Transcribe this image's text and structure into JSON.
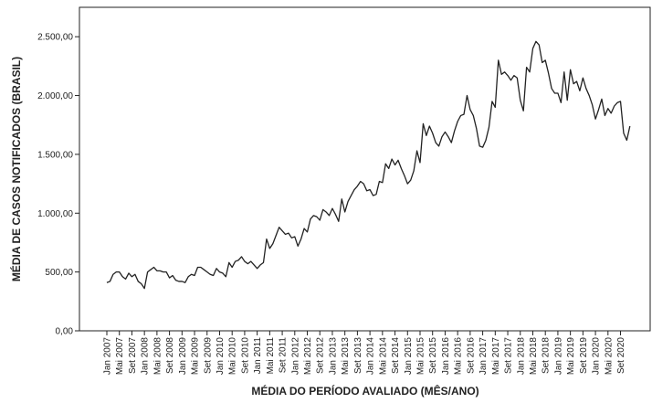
{
  "chart_data": {
    "type": "line",
    "x_label": "MÉDIA DO PERÍODO AVALIADO (MÊS/ANO)",
    "y_label": "MÉDIA DE CASOS NOTIFICADOS (BRASIL)",
    "categories": [
      "Jan 2007",
      null,
      null,
      null,
      "Mai 2007",
      null,
      null,
      null,
      "Set 2007",
      null,
      null,
      null,
      "Jan 2008",
      null,
      null,
      null,
      "Mai 2008",
      null,
      null,
      null,
      "Set 2008",
      null,
      null,
      null,
      "Jan 2009",
      null,
      null,
      null,
      "Mai 2009",
      null,
      null,
      null,
      "Set 2009",
      null,
      null,
      null,
      "Jan 2010",
      null,
      null,
      null,
      "Mai 2010",
      null,
      null,
      null,
      "Set 2010",
      null,
      null,
      null,
      "Jan 2011",
      null,
      null,
      null,
      "Mai 2011",
      null,
      null,
      null,
      "Set 2011",
      null,
      null,
      null,
      "Jan 2012",
      null,
      null,
      null,
      "Mai 2012",
      null,
      null,
      null,
      "Set 2012",
      null,
      null,
      null,
      "Jan 2013",
      null,
      null,
      null,
      "Mai 2013",
      null,
      null,
      null,
      "Set 2013",
      null,
      null,
      null,
      "Jan 2014",
      null,
      null,
      null,
      "Mai 2014",
      null,
      null,
      null,
      "Set 2014",
      null,
      null,
      null,
      "Jan 2015",
      null,
      null,
      null,
      "Mai 2015",
      null,
      null,
      null,
      "Set 2015",
      null,
      null,
      null,
      "Jan 2016",
      null,
      null,
      null,
      "Mai 2016",
      null,
      null,
      null,
      "Set 2016",
      null,
      null,
      null,
      "Jan 2017",
      null,
      null,
      null,
      "Mai 2017",
      null,
      null,
      null,
      "Set 2017",
      null,
      null,
      null,
      "Jan 2018",
      null,
      null,
      null,
      "Mai 2018",
      null,
      null,
      null,
      "Set 2018",
      null,
      null,
      null,
      "Jan 2019",
      null,
      null,
      null,
      "Mai 2019",
      null,
      null,
      null,
      "Set 2019",
      null,
      null,
      null,
      "Jan 2020",
      null,
      null,
      null,
      "Mai 2020",
      null,
      null,
      null,
      "Set 2020",
      null,
      null,
      null
    ],
    "values": [
      410,
      420,
      480,
      500,
      500,
      460,
      440,
      490,
      460,
      480,
      420,
      400,
      360,
      500,
      520,
      540,
      510,
      510,
      500,
      500,
      450,
      470,
      430,
      420,
      420,
      410,
      460,
      480,
      470,
      540,
      540,
      520,
      500,
      480,
      470,
      530,
      500,
      490,
      460,
      580,
      540,
      590,
      600,
      630,
      590,
      570,
      590,
      560,
      530,
      560,
      580,
      780,
      700,
      740,
      810,
      880,
      850,
      820,
      830,
      790,
      800,
      720,
      780,
      870,
      840,
      950,
      980,
      970,
      940,
      1030,
      1010,
      980,
      1040,
      990,
      930,
      1120,
      1010,
      1100,
      1150,
      1200,
      1230,
      1270,
      1250,
      1190,
      1200,
      1150,
      1160,
      1270,
      1260,
      1420,
      1380,
      1460,
      1410,
      1450,
      1380,
      1320,
      1250,
      1280,
      1360,
      1530,
      1430,
      1760,
      1660,
      1740,
      1680,
      1600,
      1570,
      1650,
      1690,
      1650,
      1600,
      1700,
      1780,
      1830,
      1840,
      2000,
      1880,
      1830,
      1720,
      1570,
      1560,
      1620,
      1730,
      1950,
      1900,
      2300,
      2180,
      2200,
      2170,
      2130,
      2170,
      2150,
      1960,
      1870,
      2240,
      2200,
      2400,
      2460,
      2430,
      2280,
      2300,
      2190,
      2060,
      2020,
      2020,
      1940,
      2200,
      1960,
      2220,
      2100,
      2120,
      2040,
      2150,
      2060,
      2000,
      1920,
      1800,
      1880,
      1970,
      1830,
      1890,
      1850,
      1910,
      1940,
      1950,
      1680,
      1620,
      1740
    ],
    "color": "#222222",
    "ylim": [
      0,
      2750
    ],
    "yticks": [
      {
        "value": 0,
        "label": "0,00"
      },
      {
        "value": 500,
        "label": "500,00"
      },
      {
        "value": 1000,
        "label": "1.000,00"
      },
      {
        "value": 1500,
        "label": "1.500,00"
      },
      {
        "value": 2000,
        "label": "2.000,00"
      },
      {
        "value": 2500,
        "label": "2.500,00"
      }
    ]
  }
}
